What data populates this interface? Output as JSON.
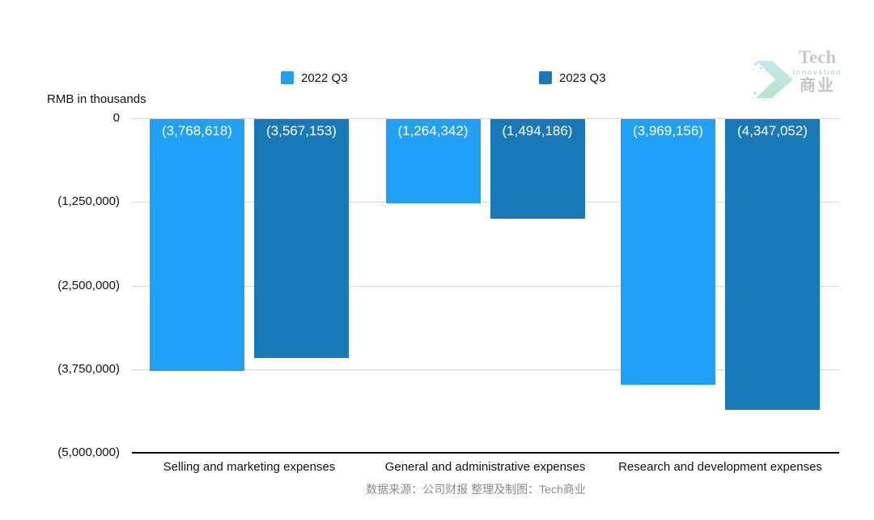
{
  "axis_note": "RMB in thousands",
  "source_note": "数据来源：公司财报 整理及制图：Tech商业",
  "logo": {
    "line1": "Tech",
    "line2": "Innovation",
    "line3": "商业"
  },
  "colors": {
    "series_2022": "#21a0f8",
    "series_2023": "#1878b8",
    "gridline": "#d8d8d8",
    "axis": "#000000",
    "bar_label_text": "#ffffff",
    "source_text": "#8a8a8a"
  },
  "chart_data": {
    "type": "bar",
    "categories": [
      "Selling and marketing expenses",
      "General and administrative expenses",
      "Research and development expenses"
    ],
    "series": [
      {
        "name": "2022 Q3",
        "color": "#21a0f8",
        "values": [
          -3768618,
          -1264342,
          -3969156
        ],
        "labels": [
          "(3,768,618)",
          "(1,264,342)",
          "(3,969,156)"
        ]
      },
      {
        "name": "2023 Q3",
        "color": "#1878b8",
        "values": [
          -3567153,
          -1494186,
          -4347052
        ],
        "labels": [
          "(3,567,153)",
          "(1,494,186)",
          "(4,347,052)"
        ]
      }
    ],
    "ylabel": "RMB in thousands",
    "ylim": [
      -5000000,
      0
    ],
    "yticks": [
      {
        "value": 0,
        "label": "0"
      },
      {
        "value": -1250000,
        "label": "(1,250,000)"
      },
      {
        "value": -2500000,
        "label": "(2,500,000)"
      },
      {
        "value": -3750000,
        "label": "(3,750,000)"
      },
      {
        "value": -5000000,
        "label": "(5,000,000)"
      }
    ],
    "grid": true,
    "legend_position": "top"
  }
}
